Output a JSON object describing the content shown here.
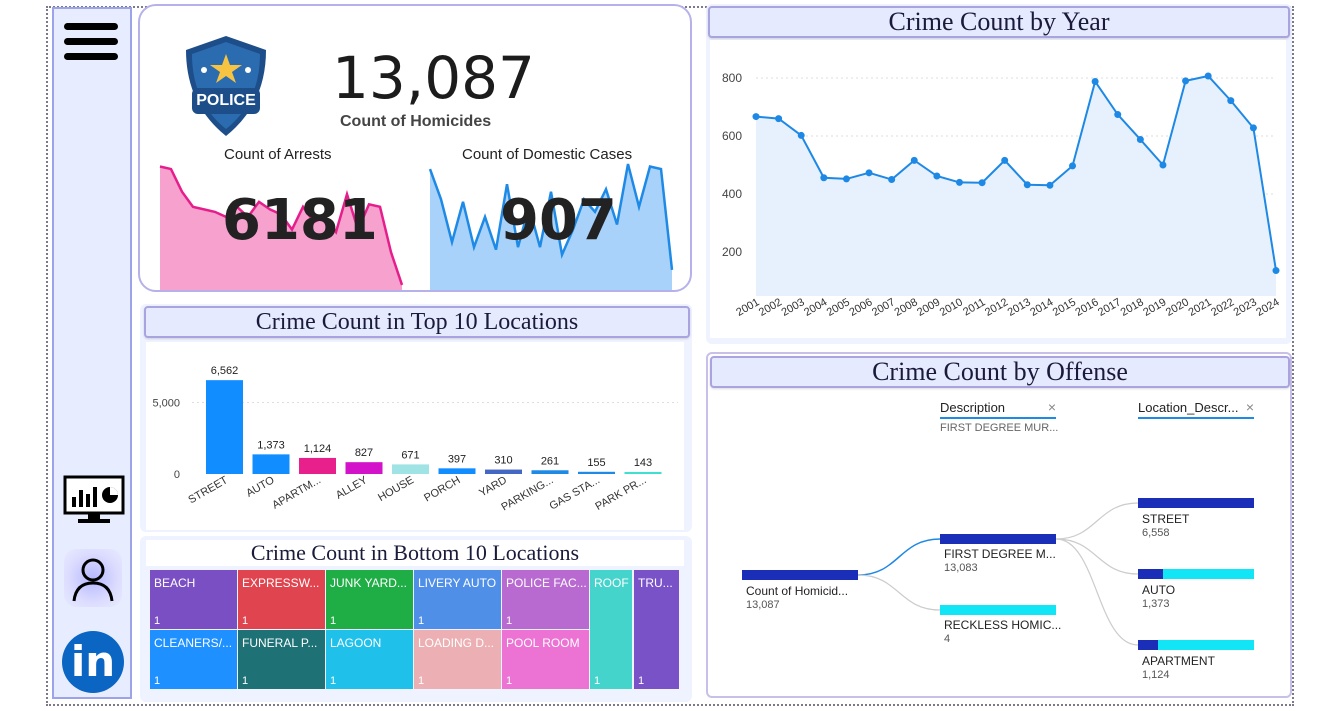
{
  "colors": {
    "arrests": "#e61e8c",
    "arrests_fill": "#f7a1cf",
    "domestic": "#1e8ae6",
    "domestic_fill": "#a9d2fb",
    "bar_primary": "#118dff",
    "line": "#1e88e5",
    "tree_dark": "#1b2eb8",
    "tree_cyan": "#12e5f5"
  },
  "sidebar": {
    "menu_icon": "hamburger-icon",
    "dashboard_icon": "dashboard-monitor-icon",
    "user_icon": "user-icon",
    "linkedin_icon": "linkedin-icon",
    "linkedin_text": "in"
  },
  "kpi": {
    "badge_text": "POLICE",
    "homicides_value": "13,087",
    "homicides_label": "Count of Homicides",
    "arrests_label": "Count of Arrests",
    "arrests_value": "6181",
    "domestic_label": "Count of Domestic Cases",
    "domestic_value": "907"
  },
  "top_locations": {
    "title": "Crime Count in Top 10 Locations",
    "chart_data": {
      "type": "bar",
      "categories": [
        "STREET",
        "AUTO",
        "APARTM...",
        "ALLEY",
        "HOUSE",
        "PORCH",
        "YARD",
        "PARKING...",
        "GAS STA...",
        "PARK PR..."
      ],
      "values": [
        6562,
        1373,
        1124,
        827,
        671,
        397,
        310,
        261,
        155,
        143
      ],
      "value_labels": [
        "6,562",
        "1,373",
        "1,124",
        "827",
        "671",
        "397",
        "310",
        "261",
        "155",
        "143"
      ],
      "colors": [
        "#118dff",
        "#118dff",
        "#e8208c",
        "#d313c9",
        "#a0e3e5",
        "#118dff",
        "#4467c4",
        "#1e8ae6",
        "#1e8ae6",
        "#40e0d0"
      ],
      "yticks": [
        "0",
        "5,000"
      ],
      "ylim": [
        0,
        7000
      ]
    }
  },
  "bottom_locations": {
    "title": "Crime Count in Bottom 10 Locations",
    "tiles": [
      {
        "label": "BEACH",
        "count": "1",
        "color": "#7b4fc4"
      },
      {
        "label": "EXPRESSW...",
        "count": "1",
        "color": "#e0444f"
      },
      {
        "label": "JUNK YARD...",
        "count": "1",
        "color": "#1fae45"
      },
      {
        "label": "LIVERY AUTO",
        "count": "1",
        "color": "#4f8fe8"
      },
      {
        "label": "POLICE FAC...",
        "count": "1",
        "color": "#b86ad1"
      },
      {
        "label": "ROOF",
        "count": "1",
        "color": "#44d4cc"
      },
      {
        "label": "TRU...",
        "count": "1",
        "color": "#7a52c8"
      },
      {
        "label": "CLEANERS/...",
        "count": "1",
        "color": "#1e90ff"
      },
      {
        "label": "FUNERAL P...",
        "count": "1",
        "color": "#1e7276"
      },
      {
        "label": "LAGOON",
        "count": "1",
        "color": "#1fc0ea"
      },
      {
        "label": "LOADING D...",
        "count": "1",
        "color": "#ecb0b4"
      },
      {
        "label": "POOL ROOM",
        "count": "1",
        "color": "#ec72d4"
      }
    ]
  },
  "by_year": {
    "title": "Crime Count by Year",
    "chart_data": {
      "type": "area",
      "x": [
        "2001",
        "2002",
        "2003",
        "2004",
        "2005",
        "2006",
        "2007",
        "2008",
        "2009",
        "2010",
        "2011",
        "2012",
        "2013",
        "2014",
        "2015",
        "2016",
        "2017",
        "2018",
        "2019",
        "2020",
        "2021",
        "2022",
        "2023",
        "2024"
      ],
      "values": [
        667,
        660,
        602,
        456,
        452,
        473,
        450,
        516,
        462,
        440,
        439,
        516,
        432,
        430,
        497,
        788,
        674,
        588,
        500,
        790,
        807,
        722,
        628,
        136
      ],
      "yticks": [
        "200",
        "400",
        "600",
        "800"
      ],
      "ylim": [
        100,
        850
      ]
    }
  },
  "by_offense": {
    "title": "Crime Count by Offense",
    "col1_header": "Description",
    "col1_filter": "FIRST DEGREE MUR...",
    "col2_header": "Location_Descr...",
    "close_glyph": "×",
    "root": {
      "label": "Count of Homicid...",
      "value": "13,087"
    },
    "level1": [
      {
        "label": "FIRST DEGREE M...",
        "value": "13,083"
      },
      {
        "label": "RECKLESS HOMIC...",
        "value": "4"
      }
    ],
    "level2": [
      {
        "label": "STREET",
        "value": "6,558"
      },
      {
        "label": "AUTO",
        "value": "1,373"
      },
      {
        "label": "APARTMENT",
        "value": "1,124"
      }
    ]
  }
}
